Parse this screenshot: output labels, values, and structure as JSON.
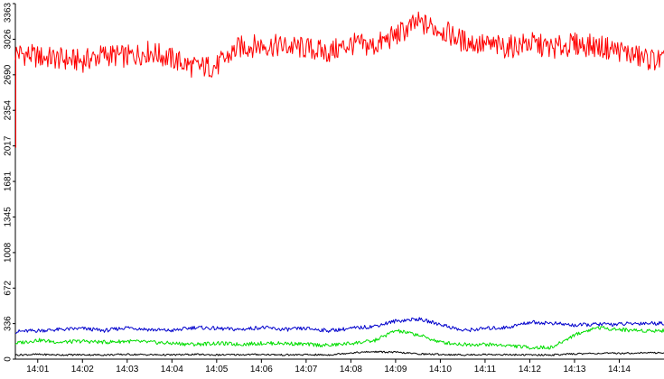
{
  "chart_data": {
    "type": "line",
    "title": "",
    "xlabel": "",
    "ylabel": "",
    "x_range": [
      "14:00:30",
      "14:15:00"
    ],
    "ylim": [
      0,
      3363
    ],
    "yticks": [
      0,
      336,
      672,
      1008,
      1345,
      1681,
      2017,
      2354,
      2690,
      3026,
      3363
    ],
    "xticks": [
      "14:01",
      "14:02",
      "14:03",
      "14:04",
      "14:05",
      "14:06",
      "14:07",
      "14:08",
      "14:09",
      "14:10",
      "14:11",
      "14:12",
      "14:13",
      "14:14"
    ],
    "grid": false,
    "legend": "none",
    "series": [
      {
        "color": "#ff0000",
        "x": [
          "14:00:30",
          "14:01:00",
          "14:01:30",
          "14:02:00",
          "14:02:30",
          "14:03:00",
          "14:03:30",
          "14:04:00",
          "14:04:30",
          "14:05:00",
          "14:05:30",
          "14:06:00",
          "14:06:30",
          "14:07:00",
          "14:07:30",
          "14:08:00",
          "14:08:30",
          "14:09:00",
          "14:09:30",
          "14:10:00",
          "14:10:30",
          "14:11:00",
          "14:11:30",
          "14:12:00",
          "14:12:30",
          "14:13:00",
          "14:13:30",
          "14:14:00",
          "14:14:30",
          "14:15:00"
        ],
        "values": [
          2900,
          2860,
          2840,
          2820,
          2880,
          2860,
          2910,
          2840,
          2760,
          2770,
          2950,
          2970,
          2960,
          2940,
          2900,
          2980,
          2960,
          3060,
          3180,
          3120,
          3010,
          2970,
          2950,
          2990,
          2940,
          2980,
          2960,
          2920,
          2850,
          2820
        ]
      },
      {
        "color": "#0000cc",
        "x": [
          "14:00:30",
          "14:01:00",
          "14:01:30",
          "14:02:00",
          "14:02:30",
          "14:03:00",
          "14:03:30",
          "14:04:00",
          "14:04:30",
          "14:05:00",
          "14:05:30",
          "14:06:00",
          "14:06:30",
          "14:07:00",
          "14:07:30",
          "14:08:00",
          "14:08:30",
          "14:09:00",
          "14:09:30",
          "14:10:00",
          "14:10:30",
          "14:11:00",
          "14:11:30",
          "14:12:00",
          "14:12:30",
          "14:13:00",
          "14:13:30",
          "14:14:00",
          "14:14:30",
          "14:15:00"
        ],
        "values": [
          260,
          270,
          280,
          290,
          270,
          300,
          280,
          270,
          300,
          290,
          280,
          300,
          280,
          290,
          270,
          290,
          310,
          360,
          380,
          330,
          270,
          290,
          300,
          350,
          340,
          320,
          330,
          330,
          340,
          340
        ]
      },
      {
        "color": "#00dd00",
        "x": [
          "14:00:30",
          "14:01:00",
          "14:01:30",
          "14:02:00",
          "14:02:30",
          "14:03:00",
          "14:03:30",
          "14:04:00",
          "14:04:30",
          "14:05:00",
          "14:05:30",
          "14:06:00",
          "14:06:30",
          "14:07:00",
          "14:07:30",
          "14:08:00",
          "14:08:30",
          "14:09:00",
          "14:09:30",
          "14:10:00",
          "14:10:30",
          "14:11:00",
          "14:11:30",
          "14:12:00",
          "14:12:30",
          "14:13:00",
          "14:13:30",
          "14:14:00",
          "14:14:30",
          "14:15:00"
        ],
        "values": [
          150,
          180,
          160,
          170,
          160,
          170,
          160,
          150,
          140,
          150,
          140,
          150,
          150,
          140,
          130,
          150,
          170,
          270,
          230,
          160,
          140,
          140,
          130,
          110,
          110,
          230,
          300,
          280,
          270,
          270
        ]
      },
      {
        "color": "#000000",
        "x": [
          "14:00:30",
          "14:01:00",
          "14:01:30",
          "14:02:00",
          "14:02:30",
          "14:03:00",
          "14:03:30",
          "14:04:00",
          "14:04:30",
          "14:05:00",
          "14:05:30",
          "14:06:00",
          "14:06:30",
          "14:07:00",
          "14:07:30",
          "14:08:00",
          "14:08:30",
          "14:09:00",
          "14:09:30",
          "14:10:00",
          "14:10:30",
          "14:11:00",
          "14:11:30",
          "14:12:00",
          "14:12:30",
          "14:13:00",
          "14:13:30",
          "14:14:00",
          "14:14:30",
          "14:15:00"
        ],
        "values": [
          40,
          45,
          40,
          42,
          40,
          45,
          42,
          40,
          45,
          40,
          42,
          45,
          40,
          42,
          40,
          60,
          70,
          65,
          50,
          45,
          40,
          45,
          42,
          40,
          40,
          50,
          55,
          55,
          60,
          60
        ]
      }
    ]
  }
}
